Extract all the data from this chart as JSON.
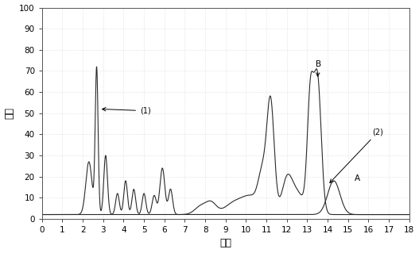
{
  "title": "",
  "xlabel": "时间",
  "ylabel": "毫伏",
  "xlim": [
    0,
    18
  ],
  "ylim": [
    0,
    100
  ],
  "xticks": [
    0,
    1,
    2,
    3,
    4,
    5,
    6,
    7,
    8,
    9,
    10,
    11,
    12,
    13,
    14,
    15,
    16,
    17,
    18
  ],
  "yticks": [
    0,
    10,
    20,
    30,
    40,
    50,
    60,
    70,
    80,
    90,
    100
  ],
  "background_color": "#ffffff",
  "line1_color": "#2a2a2a",
  "line2_color": "#2a2a2a",
  "figsize": [
    5.27,
    3.19
  ],
  "dpi": 100
}
